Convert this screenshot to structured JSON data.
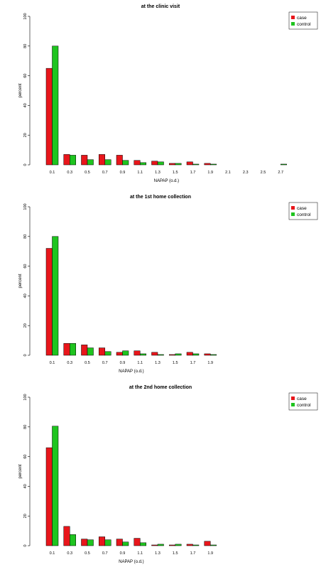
{
  "chart_data": [
    {
      "type": "bar",
      "title": "at the clinic visit",
      "xlabel": "NAPAP (o.d.)",
      "ylabel": "percent",
      "ylim": [
        0,
        100
      ],
      "yticks": [
        "0",
        "20",
        "40",
        "60",
        "80",
        "100"
      ],
      "categories": [
        "0.1",
        "0.3",
        "0.5",
        "0.7",
        "0.9",
        "1.1",
        "1.3",
        "1.5",
        "1.7",
        "1.9",
        "2.1",
        "2.3",
        "2.5",
        "2.7"
      ],
      "series": [
        {
          "name": "case",
          "color": "#e8161b",
          "values": [
            65,
            7,
            6.5,
            7,
            6.5,
            3,
            2.5,
            1,
            2,
            1,
            0,
            0,
            0,
            0
          ]
        },
        {
          "name": "control",
          "color": "#1fc41f",
          "values": [
            80,
            6.5,
            3.5,
            3.5,
            3,
            1.5,
            2,
            1,
            0.5,
            0.5,
            0,
            0,
            0,
            0.5
          ]
        }
      ],
      "legend": "top-right",
      "grid": false
    },
    {
      "type": "bar",
      "title": "at the 1st home collection",
      "xlabel": "NAPAP (o.d.)",
      "ylabel": "percent",
      "ylim": [
        0,
        100
      ],
      "yticks": [
        "0",
        "20",
        "40",
        "60",
        "80",
        "100"
      ],
      "categories": [
        "0.1",
        "0.3",
        "0.5",
        "0.7",
        "0.9",
        "1.1",
        "1.3",
        "1.5",
        "1.7",
        "1.9"
      ],
      "series": [
        {
          "name": "case",
          "color": "#e8161b",
          "values": [
            72,
            8,
            7,
            5,
            2,
            3,
            2,
            0.5,
            2,
            1
          ]
        },
        {
          "name": "control",
          "color": "#1fc41f",
          "values": [
            80,
            8,
            5,
            2.5,
            3,
            1,
            0.5,
            1,
            1,
            0.5
          ]
        }
      ],
      "legend": "top-right",
      "grid": false
    },
    {
      "type": "bar",
      "title": "at the 2nd home collection",
      "xlabel": "NAPAP (o.d.)",
      "ylabel": "percent",
      "ylim": [
        0,
        100
      ],
      "yticks": [
        "0",
        "20",
        "40",
        "60",
        "80",
        "100"
      ],
      "categories": [
        "0.1",
        "0.3",
        "0.5",
        "0.7",
        "0.9",
        "1.1",
        "1.3",
        "1.5",
        "1.7",
        "1.9"
      ],
      "series": [
        {
          "name": "case",
          "color": "#e8161b",
          "values": [
            66,
            13,
            4.5,
            6,
            4.5,
            5,
            0.5,
            0.5,
            1,
            3
          ]
        },
        {
          "name": "control",
          "color": "#1fc41f",
          "values": [
            80.5,
            7.5,
            4,
            4,
            2.5,
            2,
            1,
            1,
            0.5,
            0.5
          ]
        }
      ],
      "legend": "top-right",
      "grid": false
    }
  ]
}
